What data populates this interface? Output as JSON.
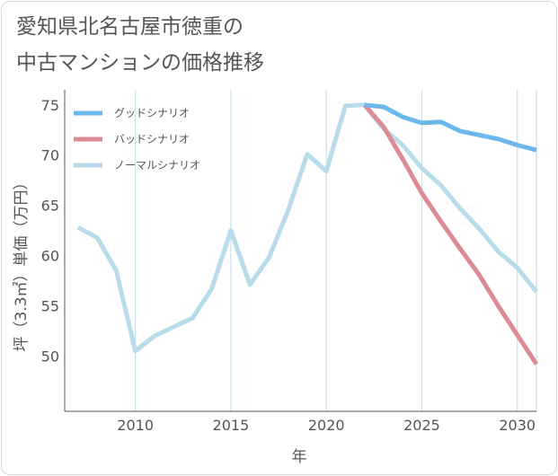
{
  "title_lines": [
    "愛知県北名古屋市徳重の",
    "中古マンションの価格推移"
  ],
  "chart_data": {
    "type": "line",
    "xlabel": "年",
    "ylabel": "坪（3.3㎡）単価（万円）",
    "xlim": [
      2006.3,
      2031
    ],
    "ylim": [
      44.5,
      76.5
    ],
    "x_ticks": [
      2010,
      2015,
      2020,
      2025,
      2030
    ],
    "y_ticks": [
      50,
      55,
      60,
      65,
      70,
      75
    ],
    "grid": {
      "vertical": true,
      "horizontal": false
    },
    "legend_position": "top-left",
    "series": [
      {
        "name": "グッドシナリオ",
        "color": "#6ab8ec",
        "x": [
          2022,
          2023,
          2024,
          2025,
          2026,
          2027,
          2028,
          2029,
          2030,
          2031
        ],
        "y": [
          75.0,
          74.8,
          73.8,
          73.2,
          73.3,
          72.4,
          72.0,
          71.6,
          71.0,
          70.5
        ]
      },
      {
        "name": "バッドシナリオ",
        "color": "#dc8b93",
        "x": [
          2022,
          2023,
          2024,
          2025,
          2026,
          2027,
          2028,
          2029,
          2030,
          2031
        ],
        "y": [
          75.0,
          72.8,
          69.6,
          66.2,
          63.4,
          60.7,
          58.1,
          55.0,
          52.1,
          49.2
        ]
      },
      {
        "name": "ノーマルシナリオ",
        "color": "#b9dceb",
        "x": [
          2007,
          2008,
          2009,
          2010,
          2011,
          2012,
          2013,
          2014,
          2015,
          2016,
          2017,
          2018,
          2019,
          2020,
          2021,
          2022,
          2023,
          2024,
          2025,
          2026,
          2027,
          2028,
          2029,
          2030,
          2031
        ],
        "y": [
          62.8,
          61.8,
          58.5,
          50.5,
          52.0,
          52.9,
          53.8,
          56.7,
          62.5,
          57.1,
          59.8,
          64.5,
          70.1,
          68.4,
          74.9,
          75.0,
          72.6,
          71.0,
          68.7,
          67.0,
          64.7,
          62.7,
          60.4,
          58.8,
          56.4
        ]
      }
    ]
  }
}
